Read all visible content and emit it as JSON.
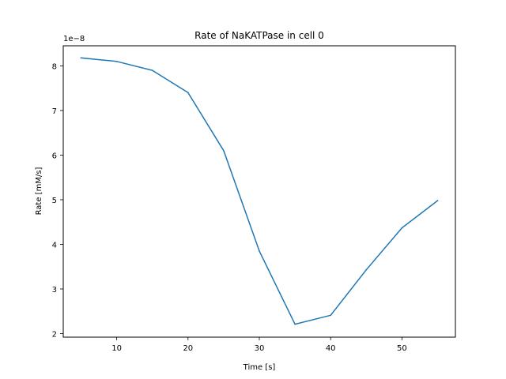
{
  "chart_data": {
    "type": "line",
    "title": "Rate of NaKATPase in cell 0",
    "xlabel": "Time [s]",
    "ylabel": "Rate [mM/s]",
    "y_offset_label": "1e−8",
    "xlim": [
      2.5,
      57.5
    ],
    "ylim": [
      1.92,
      8.45
    ],
    "y_scale_factor": 1e-08,
    "x_ticks": [
      10,
      20,
      30,
      40,
      50
    ],
    "y_ticks": [
      2,
      3,
      4,
      5,
      6,
      7,
      8
    ],
    "grid": false,
    "series": [
      {
        "color": "#1f77b4",
        "x": [
          5,
          10,
          15,
          20,
          25,
          30,
          35,
          40,
          45,
          50,
          55
        ],
        "y": [
          8.18,
          8.1,
          7.9,
          7.4,
          6.1,
          3.85,
          2.21,
          2.41,
          3.43,
          4.37,
          4.98
        ]
      }
    ]
  }
}
